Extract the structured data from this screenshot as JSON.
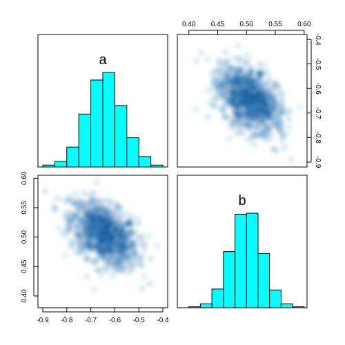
{
  "chart_data": {
    "type": "pairs",
    "variables": [
      "a",
      "b"
    ],
    "colors": {
      "histogram_fill": "#00FFFF",
      "histogram_edge": "#000000",
      "density_dark": "#08306B",
      "density_mid": "#2171B5",
      "density_light": "#C6DBEF",
      "panel_border": "#000000"
    },
    "axes": {
      "a": {
        "range": [
          -0.92,
          -0.38
        ],
        "ticks": [
          -0.9,
          -0.8,
          -0.7,
          -0.6,
          -0.5,
          -0.4
        ],
        "tick_labels": [
          "-0.9",
          "-0.8",
          "-0.7",
          "-0.6",
          "-0.5",
          "-0.4"
        ]
      },
      "b": {
        "range": [
          0.38,
          0.605
        ],
        "ticks": [
          0.4,
          0.45,
          0.5,
          0.55,
          0.6
        ],
        "tick_labels": [
          "0.40",
          "0.45",
          "0.50",
          "0.55",
          "0.60"
        ]
      }
    },
    "histograms": [
      {
        "variable": "a",
        "type": "bar",
        "bin_edges": [
          -0.9,
          -0.85,
          -0.8,
          -0.75,
          -0.7,
          -0.65,
          -0.6,
          -0.55,
          -0.5,
          -0.45,
          -0.4
        ],
        "counts": [
          2,
          6,
          21,
          56,
          92,
          100,
          65,
          31,
          11,
          2
        ]
      },
      {
        "variable": "b",
        "type": "bar",
        "bin_edges": [
          0.4,
          0.42,
          0.44,
          0.46,
          0.48,
          0.5,
          0.52,
          0.54,
          0.56,
          0.58,
          0.6
        ],
        "counts": [
          1,
          4,
          19,
          57,
          95,
          96,
          55,
          18,
          4,
          1
        ]
      }
    ],
    "scatter": {
      "type": "scatter",
      "style": "smoothed-density",
      "x_var": "a",
      "y_var": "b",
      "center": {
        "a": -0.645,
        "b": 0.505
      },
      "sd": {
        "a": 0.07,
        "b": 0.028
      },
      "correlation": -0.45,
      "n": 1000
    }
  }
}
